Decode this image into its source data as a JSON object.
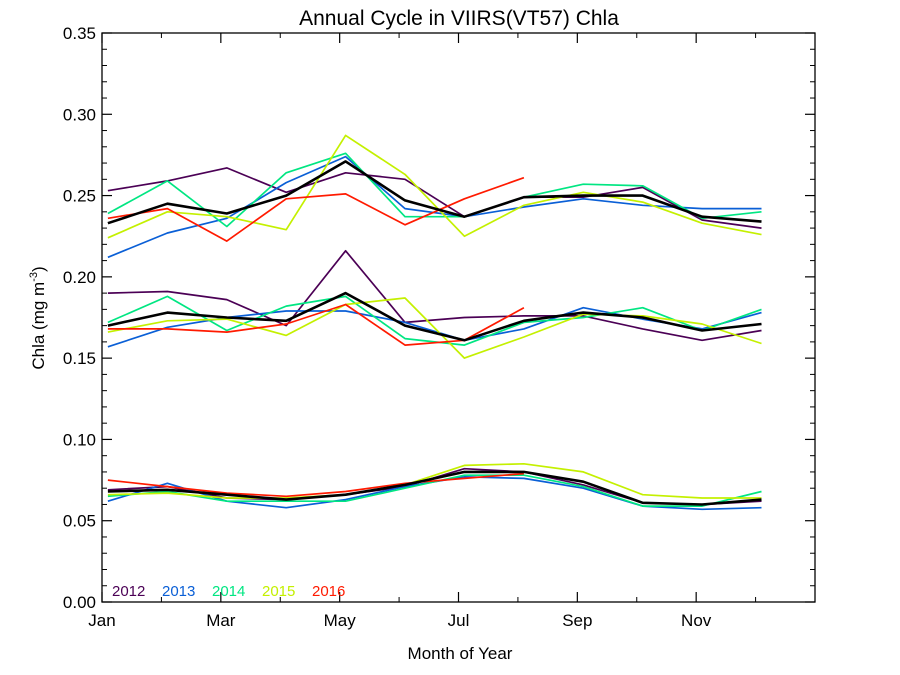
{
  "chart_data": {
    "type": "line",
    "title": "Annual Cycle in VIIRS(VT57) Chla",
    "xlabel": "Month of Year",
    "ylabel": {
      "main": "Chla (mg m",
      "sup": "-3",
      "close": ")"
    },
    "xlim": [
      1,
      13
    ],
    "ylim": [
      0,
      0.35
    ],
    "xticks": [
      {
        "value": 1,
        "label": "Jan"
      },
      {
        "value": 3,
        "label": "Mar"
      },
      {
        "value": 5,
        "label": "May"
      },
      {
        "value": 7,
        "label": "Jul"
      },
      {
        "value": 9,
        "label": "Sep"
      },
      {
        "value": 11,
        "label": "Nov"
      }
    ],
    "yticks": [
      {
        "value": 0.0,
        "label": "0.00"
      },
      {
        "value": 0.05,
        "label": "0.05"
      },
      {
        "value": 0.1,
        "label": "0.10"
      },
      {
        "value": 0.15,
        "label": "0.15"
      },
      {
        "value": 0.2,
        "label": "0.20"
      },
      {
        "value": 0.25,
        "label": "0.25"
      },
      {
        "value": 0.3,
        "label": "0.30"
      },
      {
        "value": 0.35,
        "label": "0.35"
      }
    ],
    "legend_position": "bottom-left",
    "months_x": [
      1.1,
      2.1,
      3.1,
      4.1,
      5.1,
      6.1,
      7.1,
      8.1,
      9.1,
      10.1,
      11.1,
      12.1
    ],
    "series": [
      {
        "name": "2012",
        "color": "#4b0055",
        "group": "upper",
        "values": [
          0.253,
          0.259,
          0.267,
          0.252,
          0.264,
          0.26,
          0.237,
          0.249,
          0.249,
          0.255,
          0.235,
          0.23
        ]
      },
      {
        "name": "2013",
        "color": "#0a5fd6",
        "group": "upper",
        "values": [
          0.212,
          0.227,
          0.236,
          0.258,
          0.274,
          0.242,
          0.237,
          0.243,
          0.248,
          0.244,
          0.242,
          0.242
        ]
      },
      {
        "name": "2014",
        "color": "#00e682",
        "group": "upper",
        "values": [
          0.239,
          0.259,
          0.231,
          0.264,
          0.276,
          0.237,
          0.237,
          0.249,
          0.257,
          0.256,
          0.236,
          0.24
        ]
      },
      {
        "name": "2015",
        "color": "#c4f000",
        "group": "upper",
        "values": [
          0.224,
          0.24,
          0.237,
          0.229,
          0.287,
          0.263,
          0.225,
          0.244,
          0.252,
          0.246,
          0.233,
          0.226
        ]
      },
      {
        "name": "2016",
        "color": "#ff1a00",
        "group": "upper",
        "values": [
          0.236,
          0.242,
          0.222,
          0.248,
          0.251,
          0.232,
          0.248,
          0.261
        ]
      },
      {
        "name": "",
        "color": "#000000",
        "group": "upper",
        "bold": true,
        "values": [
          0.233,
          0.245,
          0.239,
          0.25,
          0.271,
          0.247,
          0.237,
          0.249,
          0.25,
          0.25,
          0.237,
          0.234
        ]
      },
      {
        "name": "2012",
        "color": "#4b0055",
        "group": "middle",
        "values": [
          0.19,
          0.191,
          0.186,
          0.17,
          0.216,
          0.172,
          0.175,
          0.176,
          0.176,
          0.168,
          0.161,
          0.167
        ]
      },
      {
        "name": "2013",
        "color": "#0a5fd6",
        "group": "middle",
        "values": [
          0.157,
          0.169,
          0.175,
          0.179,
          0.179,
          0.172,
          0.161,
          0.168,
          0.181,
          0.174,
          0.168,
          0.178
        ]
      },
      {
        "name": "2014",
        "color": "#00e682",
        "group": "middle",
        "values": [
          0.172,
          0.188,
          0.167,
          0.182,
          0.188,
          0.162,
          0.158,
          0.172,
          0.175,
          0.181,
          0.167,
          0.18
        ]
      },
      {
        "name": "2015",
        "color": "#c4f000",
        "group": "middle",
        "values": [
          0.166,
          0.173,
          0.174,
          0.164,
          0.183,
          0.187,
          0.15,
          0.163,
          0.177,
          0.176,
          0.171,
          0.159
        ]
      },
      {
        "name": "2016",
        "color": "#ff1a00",
        "group": "middle",
        "values": [
          0.168,
          0.168,
          0.166,
          0.171,
          0.183,
          0.158,
          0.161,
          0.181
        ]
      },
      {
        "name": "",
        "color": "#000000",
        "group": "middle",
        "bold": true,
        "values": [
          0.17,
          0.178,
          0.175,
          0.173,
          0.19,
          0.17,
          0.161,
          0.173,
          0.178,
          0.175,
          0.167,
          0.171
        ]
      },
      {
        "name": "2012",
        "color": "#4b0055",
        "group": "lower",
        "values": [
          0.069,
          0.071,
          0.064,
          0.063,
          0.066,
          0.071,
          0.082,
          0.08,
          0.072,
          0.061,
          0.06,
          0.062
        ]
      },
      {
        "name": "2013",
        "color": "#0a5fd6",
        "group": "lower",
        "values": [
          0.062,
          0.073,
          0.062,
          0.058,
          0.063,
          0.071,
          0.077,
          0.076,
          0.07,
          0.059,
          0.057,
          0.058
        ]
      },
      {
        "name": "2014",
        "color": "#00e682",
        "group": "lower",
        "values": [
          0.065,
          0.068,
          0.062,
          0.062,
          0.062,
          0.07,
          0.078,
          0.078,
          0.071,
          0.059,
          0.059,
          0.068
        ]
      },
      {
        "name": "2015",
        "color": "#c4f000",
        "group": "lower",
        "values": [
          0.066,
          0.067,
          0.064,
          0.064,
          0.066,
          0.072,
          0.084,
          0.085,
          0.08,
          0.066,
          0.064,
          0.064
        ]
      },
      {
        "name": "2016",
        "color": "#ff1a00",
        "group": "lower",
        "values": [
          0.075,
          0.071,
          0.067,
          0.065,
          0.068,
          0.073,
          0.076,
          0.079
        ]
      },
      {
        "name": "",
        "color": "#000000",
        "group": "lower",
        "bold": true,
        "values": [
          0.068,
          0.069,
          0.066,
          0.063,
          0.066,
          0.072,
          0.08,
          0.08,
          0.074,
          0.061,
          0.06,
          0.063
        ]
      }
    ],
    "legend": [
      {
        "label": "2012",
        "color": "#4b0055"
      },
      {
        "label": "2013",
        "color": "#0a5fd6"
      },
      {
        "label": "2014",
        "color": "#00e682"
      },
      {
        "label": "2015",
        "color": "#c4f000"
      },
      {
        "label": "2016",
        "color": "#ff1a00"
      }
    ]
  }
}
